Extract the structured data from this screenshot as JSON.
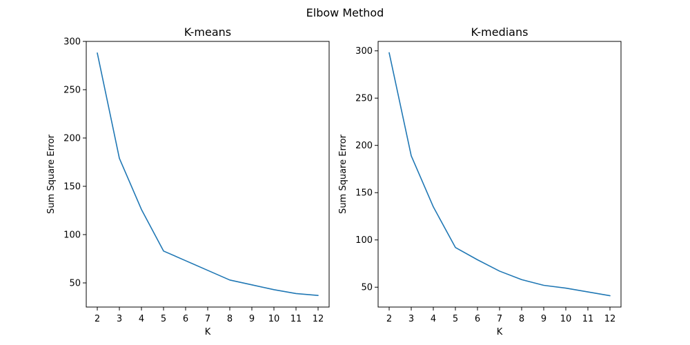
{
  "figure": {
    "title": "Elbow Method",
    "colors": {
      "line": "#1f77b4",
      "axis": "#000000",
      "background": "#ffffff"
    }
  },
  "chart_data": [
    {
      "type": "line",
      "title": "K-means",
      "xlabel": "K",
      "ylabel": "Sum Square Error",
      "x": [
        2,
        3,
        4,
        5,
        6,
        7,
        8,
        9,
        10,
        11,
        12
      ],
      "series": [
        {
          "values": [
            288,
            179,
            126,
            83,
            73,
            63,
            53,
            48,
            43,
            39,
            37
          ]
        }
      ],
      "xticks": [
        2,
        3,
        4,
        5,
        6,
        7,
        8,
        9,
        10,
        11,
        12
      ],
      "yticks": [
        50,
        100,
        150,
        200,
        250,
        300
      ],
      "xlim": [
        1.5,
        12.5
      ],
      "ylim": [
        25,
        300
      ],
      "grid": false,
      "legend": false
    },
    {
      "type": "line",
      "title": "K-medians",
      "xlabel": "K",
      "ylabel": "Sum Square Error",
      "x": [
        2,
        3,
        4,
        5,
        6,
        7,
        8,
        9,
        10,
        11,
        12
      ],
      "series": [
        {
          "values": [
            298,
            189,
            135,
            92,
            79,
            67,
            58,
            52,
            49,
            45,
            41
          ]
        }
      ],
      "xticks": [
        2,
        3,
        4,
        5,
        6,
        7,
        8,
        9,
        10,
        11,
        12
      ],
      "yticks": [
        50,
        100,
        150,
        200,
        250,
        300
      ],
      "xlim": [
        1.5,
        12.5
      ],
      "ylim": [
        29,
        310
      ],
      "grid": false,
      "legend": false
    }
  ]
}
